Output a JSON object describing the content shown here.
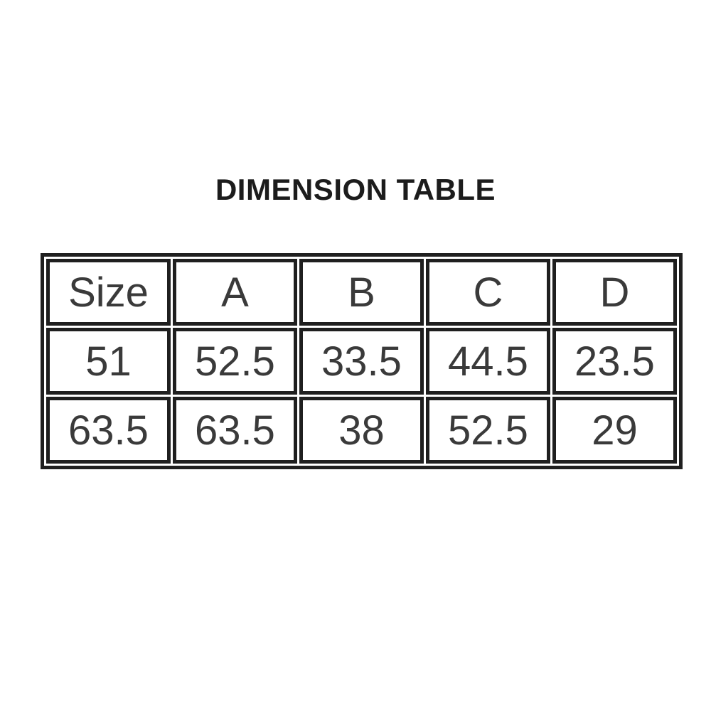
{
  "page": {
    "background": "#ffffff",
    "border_color": "#1f1f1f",
    "text_color": "#3a3a3a",
    "title_color": "#1c1c1c"
  },
  "title": "DIMENSION TABLE",
  "table": {
    "headers": [
      "Size",
      "A",
      "B",
      "C",
      "D"
    ],
    "rows": [
      [
        "51",
        "52.5",
        "33.5",
        "44.5",
        "23.5"
      ],
      [
        "63.5",
        "63.5",
        "38",
        "52.5",
        "29"
      ]
    ]
  },
  "chart_data": {
    "type": "table",
    "title": "DIMENSION TABLE",
    "columns": [
      "Size",
      "A",
      "B",
      "C",
      "D"
    ],
    "rows": [
      [
        51,
        52.5,
        33.5,
        44.5,
        23.5
      ],
      [
        63.5,
        63.5,
        38,
        52.5,
        29
      ]
    ]
  }
}
